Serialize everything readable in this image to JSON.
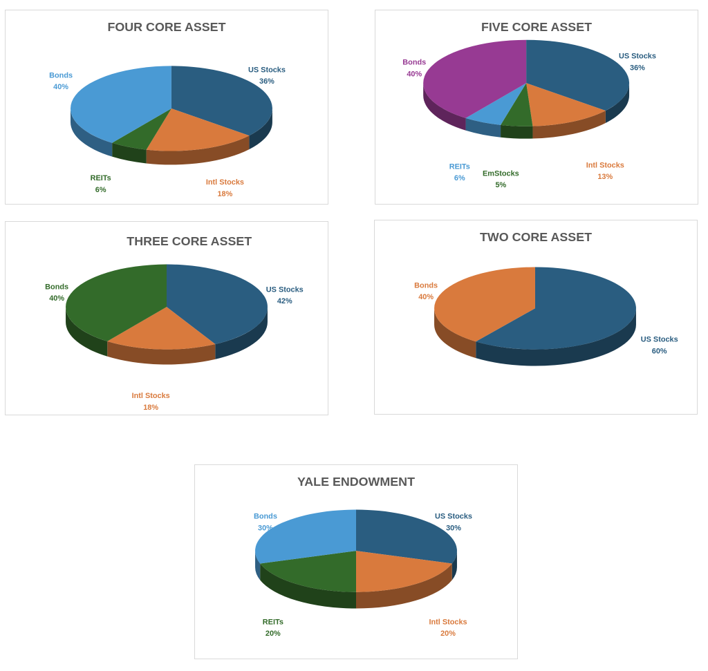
{
  "colors": {
    "US Stocks": "#2a5d80",
    "Intl Stocks": "#d97a3d",
    "REITs": "#336b2a",
    "Bonds": "#4a9ad4",
    "Bonds-five": "#973a93",
    "Bonds-three": "#336b2a",
    "Bonds-two": "#d97a3d",
    "EmStocks": "#336b2a"
  },
  "chart_data": [
    {
      "type": "pie",
      "title": "FOUR CORE ASSET",
      "slices": [
        {
          "label": "US Stocks",
          "value": 36,
          "pct": "36%",
          "color": "#2a5d80"
        },
        {
          "label": "Intl Stocks",
          "value": 18,
          "pct": "18%",
          "color": "#d97a3d"
        },
        {
          "label": "REITs",
          "value": 6,
          "pct": "6%",
          "color": "#336b2a"
        },
        {
          "label": "Bonds",
          "value": 40,
          "pct": "40%",
          "color": "#4a9ad4"
        }
      ]
    },
    {
      "type": "pie",
      "title": "FIVE CORE ASSET",
      "slices": [
        {
          "label": "US Stocks",
          "value": 36,
          "pct": "36%",
          "color": "#2a5d80"
        },
        {
          "label": "Intl Stocks",
          "value": 13,
          "pct": "13%",
          "color": "#d97a3d"
        },
        {
          "label": "EmStocks",
          "value": 5,
          "pct": "5%",
          "color": "#336b2a"
        },
        {
          "label": "REITs",
          "value": 6,
          "pct": "6%",
          "color": "#4a9ad4"
        },
        {
          "label": "Bonds",
          "value": 40,
          "pct": "40%",
          "color": "#973a93"
        }
      ]
    },
    {
      "type": "pie",
      "title": "THREE CORE ASSET",
      "slices": [
        {
          "label": "US Stocks",
          "value": 42,
          "pct": "42%",
          "color": "#2a5d80"
        },
        {
          "label": "Intl Stocks",
          "value": 18,
          "pct": "18%",
          "color": "#d97a3d"
        },
        {
          "label": "Bonds",
          "value": 40,
          "pct": "40%",
          "color": "#336b2a"
        }
      ]
    },
    {
      "type": "pie",
      "title": "TWO CORE ASSET",
      "slices": [
        {
          "label": "US Stocks",
          "value": 60,
          "pct": "60%",
          "color": "#2a5d80"
        },
        {
          "label": "Bonds",
          "value": 40,
          "pct": "40%",
          "color": "#d97a3d"
        }
      ]
    },
    {
      "type": "pie",
      "title": "YALE ENDOWMENT",
      "slices": [
        {
          "label": "US Stocks",
          "value": 30,
          "pct": "30%",
          "color": "#2a5d80"
        },
        {
          "label": "Intl Stocks",
          "value": 20,
          "pct": "20%",
          "color": "#d97a3d"
        },
        {
          "label": "REITs",
          "value": 20,
          "pct": "20%",
          "color": "#336b2a"
        },
        {
          "label": "Bonds",
          "value": 30,
          "pct": "30%",
          "color": "#4a9ad4"
        }
      ]
    }
  ]
}
